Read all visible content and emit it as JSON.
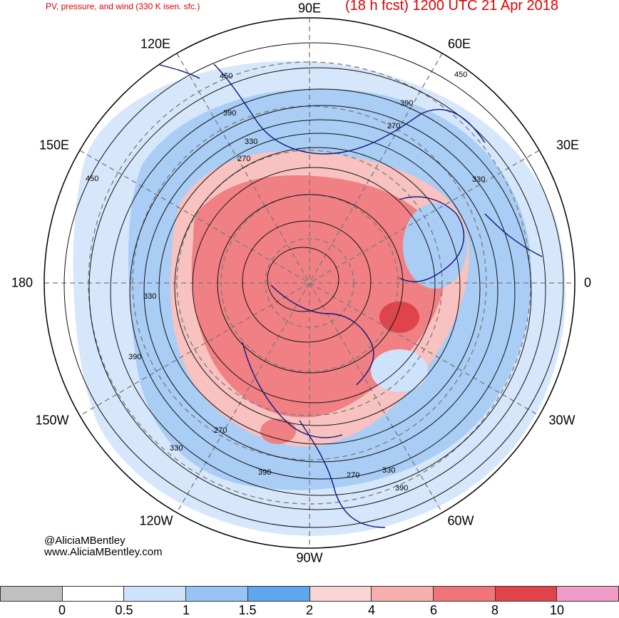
{
  "header": {
    "title": "PV, pressure, and wind (330 K isen. sfc.)",
    "valid_time": "(18 h fcst) 1200 UTC 21 Apr 2018"
  },
  "longitude_labels": [
    "90E",
    "60E",
    "30E",
    "0",
    "30W",
    "60W",
    "90W",
    "120W",
    "150W",
    "180",
    "150E",
    "120E"
  ],
  "contour_labels": [
    "450",
    "390",
    "330",
    "270",
    "390",
    "270",
    "450",
    "330",
    "450",
    "330",
    "390",
    "270",
    "330",
    "390",
    "270",
    "330",
    "390"
  ],
  "credits": {
    "handle": "@AliciaMBentley",
    "website": "www.AliciaMBentley.com"
  },
  "colorbar": {
    "colors": [
      "#c0c0c0",
      "#ffffff",
      "#cfe2fb",
      "#98c4f4",
      "#5ea6ed",
      "#f9d6d4",
      "#f6b0ad",
      "#f17578",
      "#e0434a",
      "#f19bc9"
    ],
    "ticks": [
      "0",
      "0.5",
      "1",
      "1.5",
      "2",
      "4",
      "6",
      "8",
      "10"
    ]
  }
}
